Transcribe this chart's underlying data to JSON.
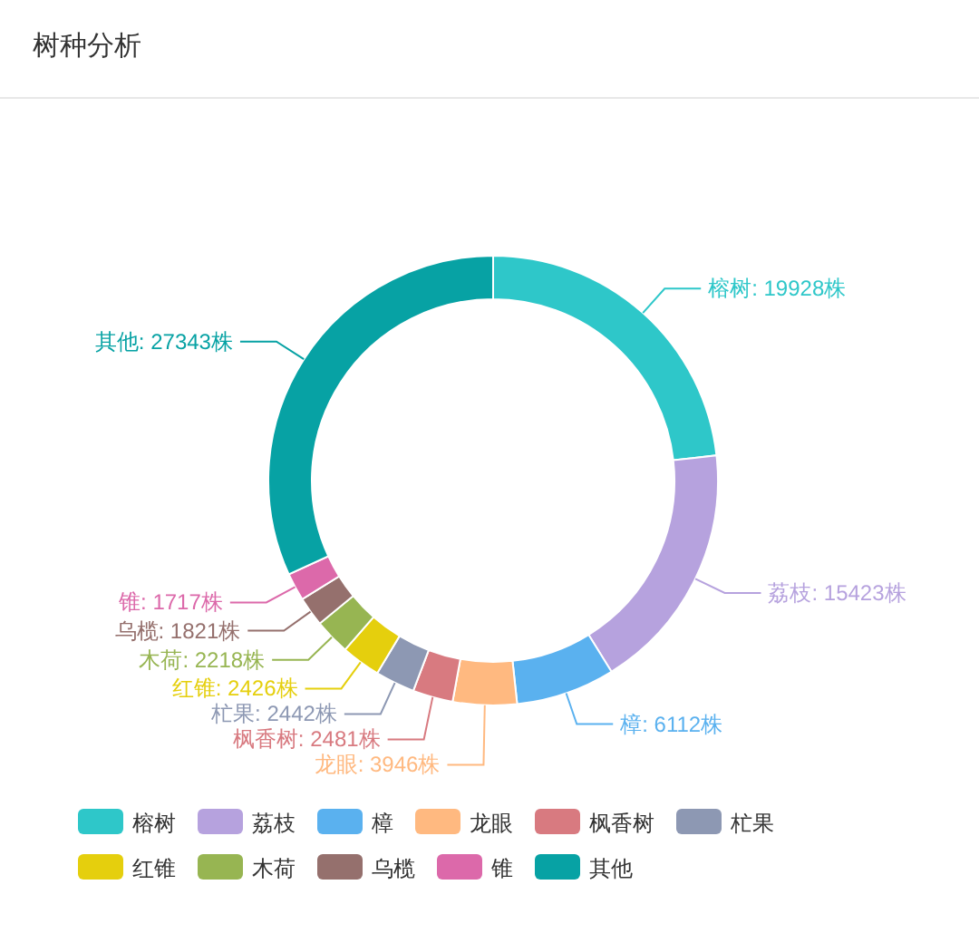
{
  "chart_data": {
    "type": "donut",
    "title": "树种分析",
    "categories": [
      "榕树",
      "荔枝",
      "樟",
      "龙眼",
      "枫香树",
      "杧果",
      "红锥",
      "木荷",
      "乌榄",
      "锥",
      "其他"
    ],
    "values": [
      19928,
      15423,
      6112,
      3946,
      2481,
      2442,
      2426,
      2218,
      1821,
      1717,
      27343
    ],
    "colors": [
      "#2ec7c9",
      "#b6a2de",
      "#5ab1ef",
      "#ffb980",
      "#d87a80",
      "#8d98b3",
      "#e5cf0d",
      "#97b552",
      "#95706d",
      "#dc69aa",
      "#07a2a4"
    ],
    "value_labels": [
      "榕树: 19928株",
      "荔枝: 15423株",
      "樟: 6112株",
      "龙眼: 3946株",
      "枫香树: 2481株",
      "杧果: 2442株",
      "红锥: 2426株",
      "木荷: 2218株",
      "乌榄: 1821株",
      "锥: 1717株",
      "其他: 27343株"
    ],
    "legend": "bottom"
  }
}
